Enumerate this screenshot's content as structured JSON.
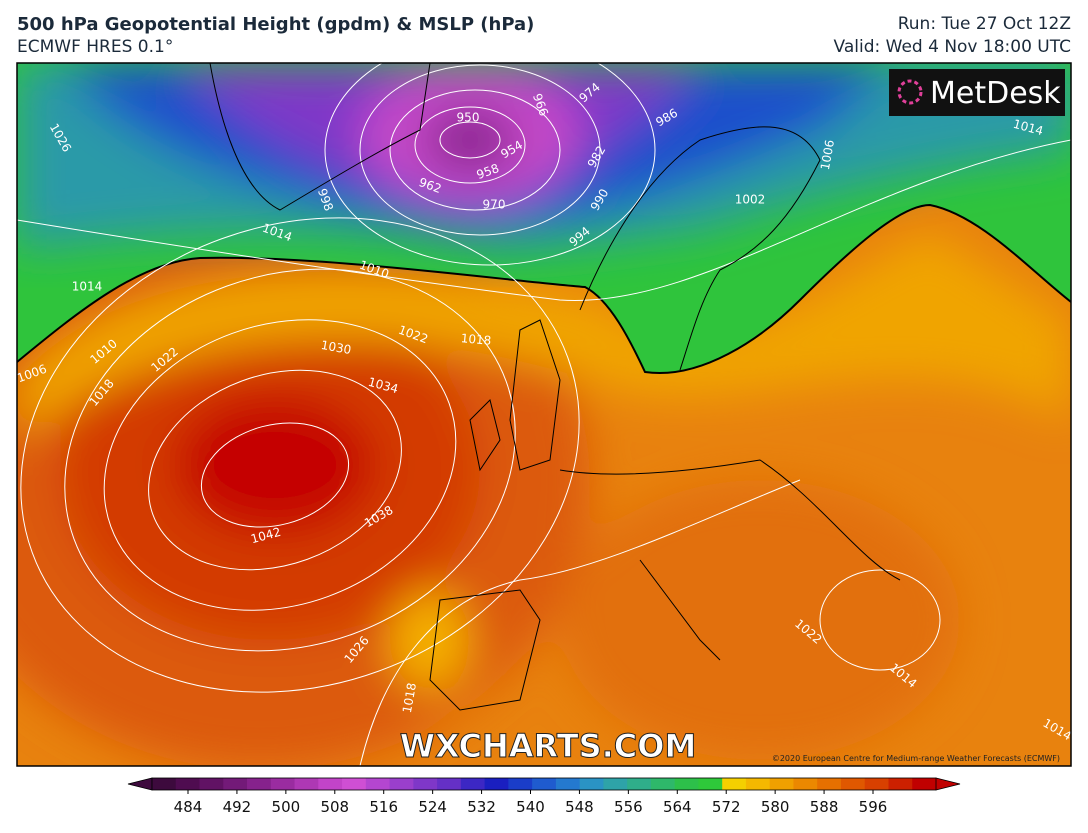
{
  "header": {
    "title": "500 hPa Geopotential Height (gpdm) & MSLP (hPa)",
    "model": "ECMWF HRES 0.1°",
    "run": "Run: Tue 27 Oct 12Z",
    "valid": "Valid: Wed 4 Nov 18:00 UTC"
  },
  "map": {
    "logo": "MetDesk",
    "watermark": "WXCHARTS.COM",
    "copyright": "©2020 European Centre for Medium-range Weather Forecasts (ECMWF)",
    "isobar_labels": [
      950,
      954,
      958,
      962,
      966,
      970,
      974,
      982,
      986,
      990,
      994,
      998,
      1002,
      1006,
      1010,
      1014,
      1014,
      1014,
      1026,
      1022,
      1018,
      1030,
      1034,
      1038,
      1042,
      1010,
      1006,
      1018,
      1022,
      1026,
      1018,
      1014,
      1014,
      1022
    ]
  },
  "colorbar": {
    "ticks": [
      484,
      492,
      500,
      508,
      516,
      524,
      532,
      540,
      548,
      556,
      564,
      572,
      580,
      588,
      596
    ],
    "colors": [
      "#3d0a3d",
      "#4f0c50",
      "#611264",
      "#731a78",
      "#86228c",
      "#9a2ca0",
      "#ae38b4",
      "#c244c8",
      "#cf4fd4",
      "#b446d0",
      "#9a3fcc",
      "#7f37c8",
      "#6530c6",
      "#3c27c4",
      "#1a1fc0",
      "#1a3dc8",
      "#1f5bcf",
      "#2479cf",
      "#2a93c4",
      "#2ea3a8",
      "#2fae8a",
      "#2eb86a",
      "#2dc04a",
      "#2ec83a",
      "#f5d000",
      "#f5b800",
      "#f0a000",
      "#eb8800",
      "#e67000",
      "#e05800",
      "#d84000",
      "#cc2000",
      "#c00000"
    ]
  }
}
